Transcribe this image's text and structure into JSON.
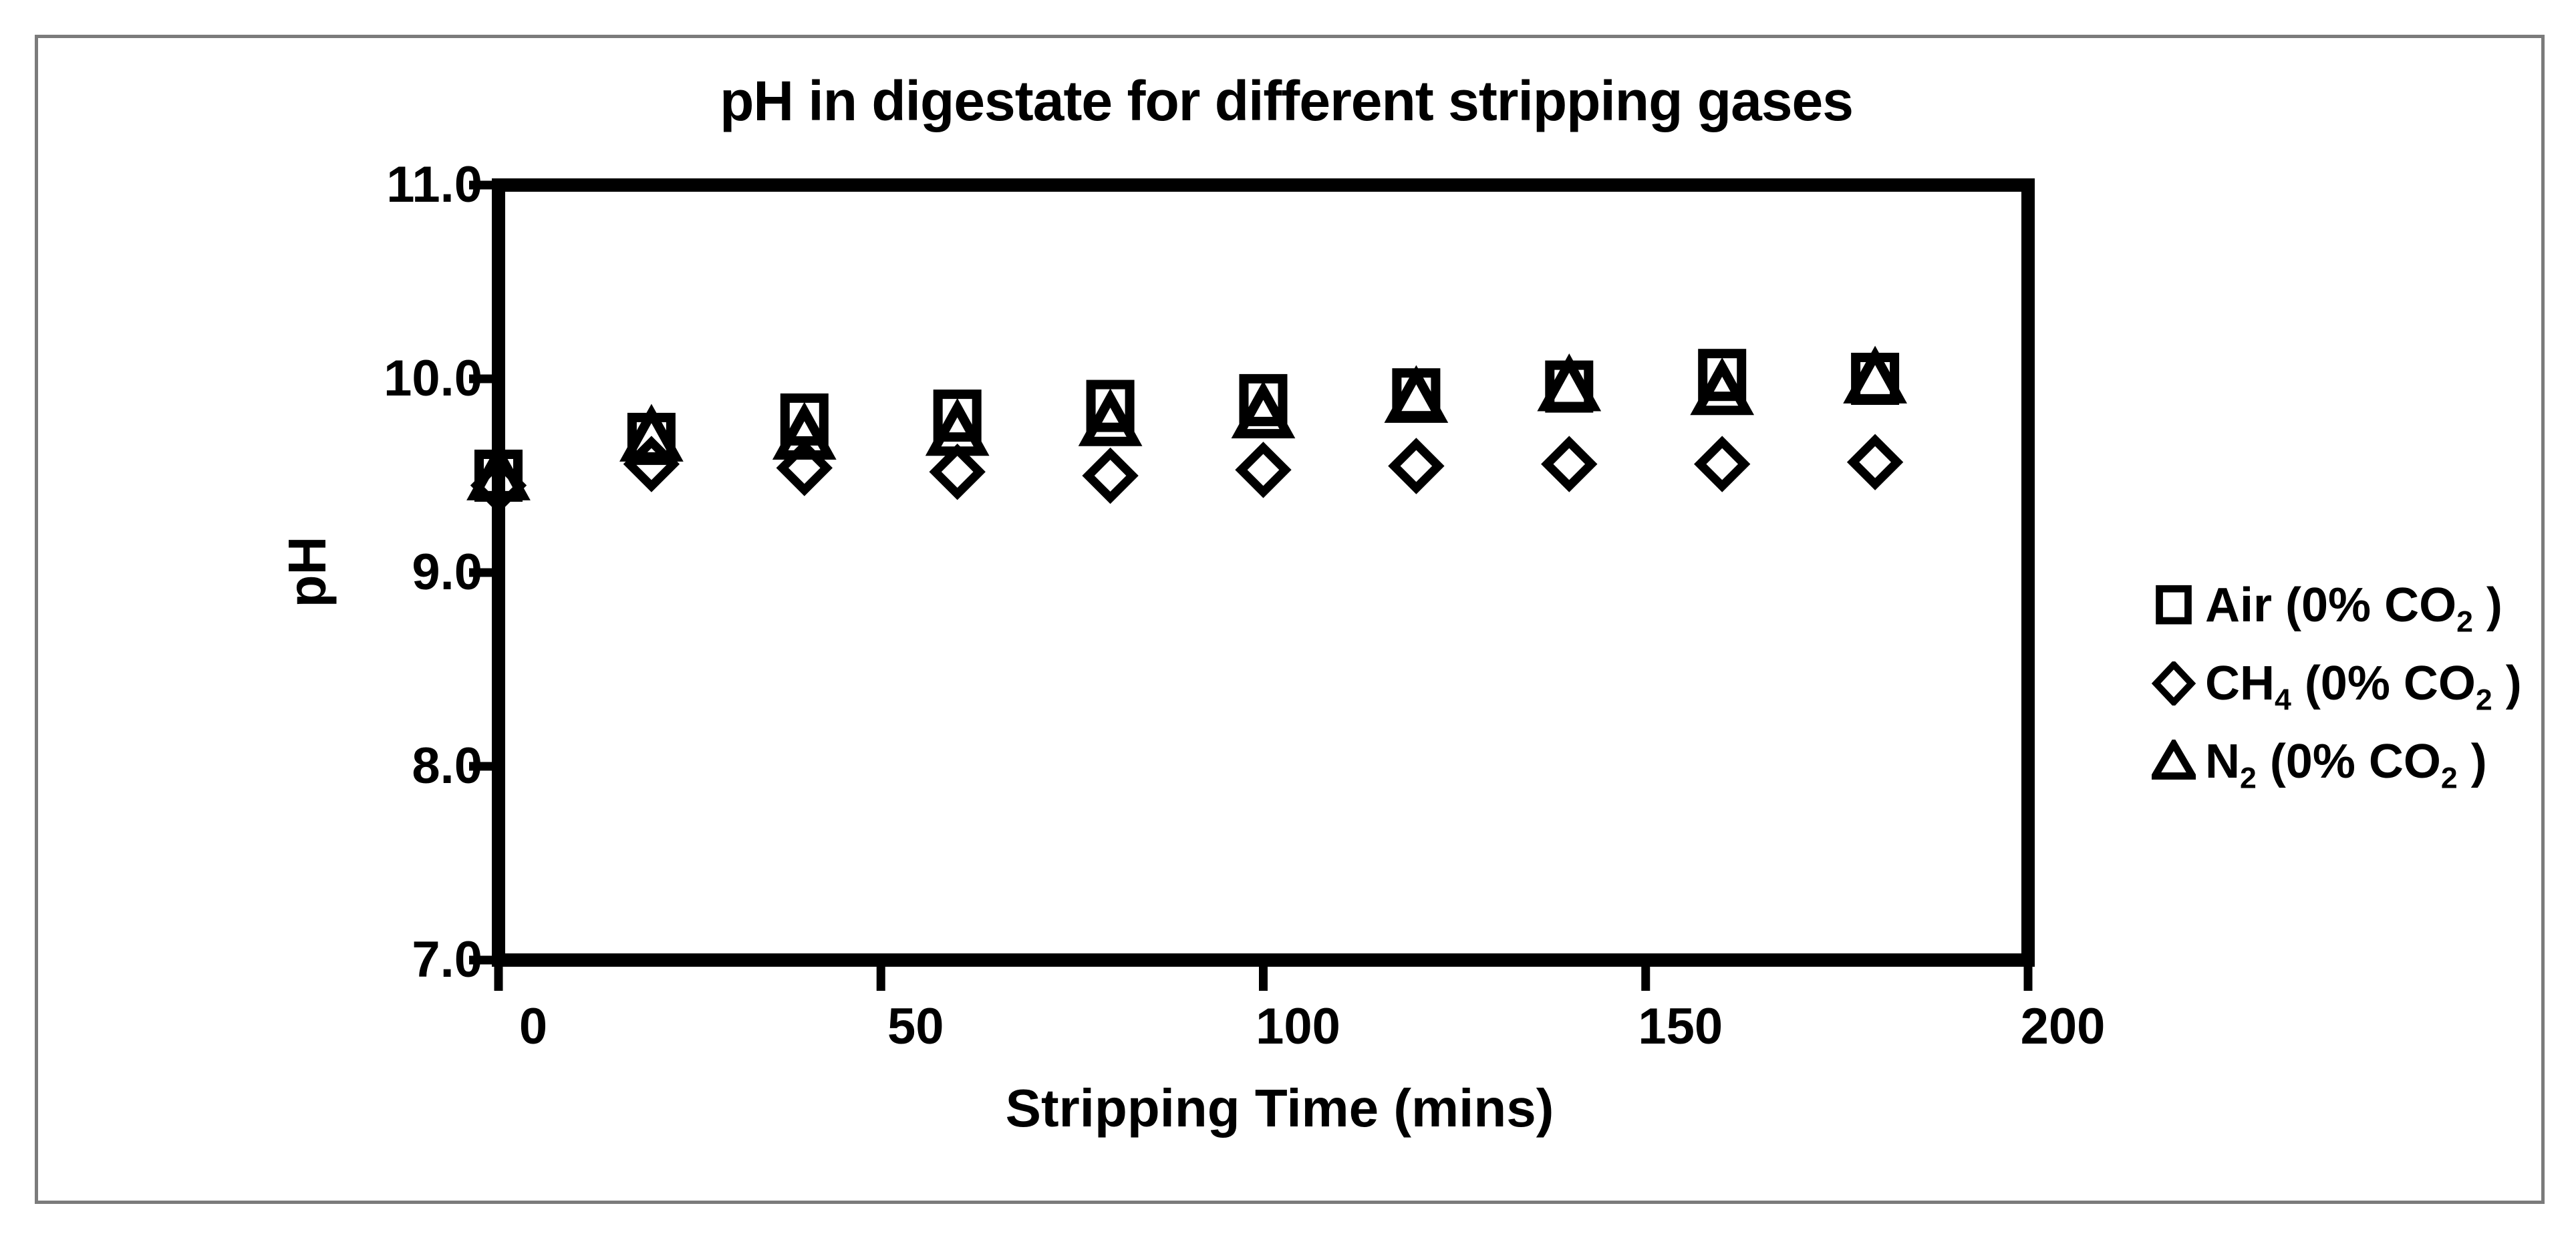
{
  "figure": {
    "title": "pH in digestate for different stripping gases",
    "x_axis": {
      "label": "Stripping Time (mins)",
      "tick_values": [
        0,
        50,
        100,
        150,
        200
      ],
      "tick_labels": [
        "0",
        "50",
        "100",
        "150",
        "200"
      ]
    },
    "y_axis": {
      "label": "pH",
      "tick_values": [
        11.0,
        10.0,
        9.0,
        8.0,
        7.0
      ],
      "tick_labels": [
        "11.0",
        "10.0",
        "9.0",
        "8.0",
        "7.0"
      ]
    }
  },
  "legend": {
    "position": "right",
    "items": [
      {
        "series": "air",
        "marker": "square",
        "label": "Air (0% CO₂ )",
        "text_parts": [
          {
            "t": "Air (0% CO"
          },
          {
            "t": "2",
            "sub": true
          },
          {
            "t": " )"
          }
        ]
      },
      {
        "series": "ch4",
        "marker": "diamond",
        "label": "CH₄ (0% CO₂ )",
        "text_parts": [
          {
            "t": "CH"
          },
          {
            "t": "4",
            "sub": true
          },
          {
            "t": " (0% CO"
          },
          {
            "t": "2",
            "sub": true
          },
          {
            "t": " )"
          }
        ]
      },
      {
        "series": "n2",
        "marker": "triangle",
        "label": "N₂ (0% CO₂ )",
        "text_parts": [
          {
            "t": "N"
          },
          {
            "t": "2",
            "sub": true
          },
          {
            "t": " (0% CO"
          },
          {
            "t": "2",
            "sub": true
          },
          {
            "t": " )"
          }
        ]
      }
    ]
  },
  "chart_data": {
    "type": "scatter",
    "title": "pH in digestate for different stripping gases",
    "xlabel": "Stripping Time (mins)",
    "ylabel": "pH",
    "xlim": [
      0,
      200
    ],
    "ylim": [
      7.0,
      11.0
    ],
    "x_ticks": [
      0,
      50,
      100,
      150,
      200
    ],
    "y_ticks": [
      7.0,
      8.0,
      9.0,
      10.0,
      11.0
    ],
    "grid": false,
    "legend_position": "right",
    "marker_color": "#000000",
    "markers_filled": false,
    "x": [
      0,
      20,
      40,
      60,
      80,
      100,
      120,
      140,
      160,
      180
    ],
    "series": [
      {
        "name": "Air (0% CO2)",
        "marker": "square",
        "values": [
          9.5,
          9.69,
          9.79,
          9.81,
          9.86,
          9.89,
          9.92,
          9.96,
          10.02,
          10.0
        ]
      },
      {
        "name": "CH4 (0% CO2)",
        "marker": "diamond",
        "values": [
          9.45,
          9.56,
          9.54,
          9.52,
          9.5,
          9.53,
          9.55,
          9.56,
          9.56,
          9.57
        ]
      },
      {
        "name": "N2 (0% CO2)",
        "marker": "triangle",
        "values": [
          9.49,
          9.69,
          9.7,
          9.72,
          9.77,
          9.81,
          9.89,
          9.95,
          9.93,
          9.99
        ]
      }
    ]
  }
}
